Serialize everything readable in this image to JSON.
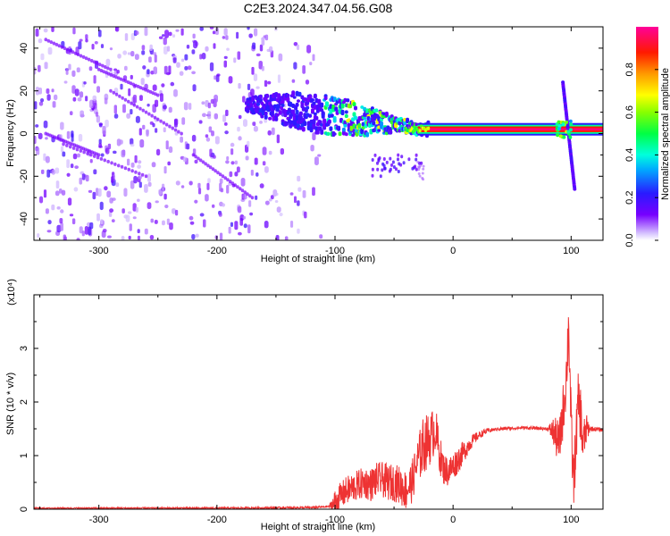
{
  "title": "C2E3.2024.347.04.56.G08",
  "chart_data": [
    {
      "type": "heatmap",
      "xlabel": "Height of straight line (km)",
      "ylabel": "Frequency (Hz)",
      "xlim": [
        -355,
        127
      ],
      "ylim": [
        -50,
        50
      ],
      "xticks": [
        -300,
        -200,
        -100,
        0,
        100
      ],
      "yticks": [
        -40,
        -20,
        0,
        20,
        40
      ],
      "colorbar": {
        "label": "Normalized spectral amplitude",
        "range": [
          0.0,
          1.0
        ],
        "ticks": [
          0.0,
          0.2,
          0.4,
          0.6,
          0.8
        ],
        "tick_labels": [
          "0.0",
          "0.2",
          "0.4",
          "0.6",
          "0.8"
        ]
      },
      "features": {
        "noise_region_x": [
          -355,
          -120
        ],
        "carrier_frequency": 2,
        "carrier_x": [
          -30,
          127
        ],
        "noisy_band": {
          "x": [
            -175,
            -20
          ],
          "freq_start": 14,
          "freq_end": 2
        },
        "spike_x": 97,
        "spike_freq_range": [
          -26,
          24
        ]
      },
      "grid": false
    },
    {
      "type": "line",
      "xlabel": "Height of straight line (km)",
      "ylabel": "SNR (10 * v/v)",
      "scale_label": "(x10⁴)",
      "xlim": [
        -355,
        127
      ],
      "ylim": [
        0,
        4
      ],
      "xticks": [
        -300,
        -200,
        -100,
        0,
        100
      ],
      "yticks": [
        0,
        1,
        2,
        3
      ],
      "series": [
        {
          "color": "#ee3333",
          "points": [
            [
              -355,
              0.02
            ],
            [
              -200,
              0.02
            ],
            [
              -120,
              0.03
            ],
            [
              -105,
              0.05
            ],
            [
              -100,
              0.12
            ],
            [
              -95,
              0.25
            ],
            [
              -90,
              0.35
            ],
            [
              -85,
              0.4
            ],
            [
              -80,
              0.45
            ],
            [
              -75,
              0.5
            ],
            [
              -70,
              0.45
            ],
            [
              -65,
              0.55
            ],
            [
              -60,
              0.55
            ],
            [
              -55,
              0.5
            ],
            [
              -50,
              0.5
            ],
            [
              -45,
              0.45
            ],
            [
              -40,
              0.35
            ],
            [
              -35,
              0.5
            ],
            [
              -30,
              0.9
            ],
            [
              -25,
              1.2
            ],
            [
              -20,
              1.3
            ],
            [
              -15,
              1.5
            ],
            [
              -12,
              1.1
            ],
            [
              -8,
              0.75
            ],
            [
              -4,
              0.7
            ],
            [
              0,
              0.8
            ],
            [
              5,
              0.95
            ],
            [
              10,
              1.1
            ],
            [
              15,
              1.25
            ],
            [
              20,
              1.35
            ],
            [
              25,
              1.42
            ],
            [
              30,
              1.47
            ],
            [
              40,
              1.5
            ],
            [
              60,
              1.52
            ],
            [
              80,
              1.5
            ],
            [
              85,
              1.45
            ],
            [
              88,
              1.3
            ],
            [
              90,
              1.2
            ],
            [
              92,
              1.6
            ],
            [
              94,
              2.0
            ],
            [
              96,
              2.5
            ],
            [
              98,
              3.5
            ],
            [
              100,
              1.5
            ],
            [
              102,
              0.5
            ],
            [
              104,
              1.2
            ],
            [
              106,
              2.0
            ],
            [
              108,
              1.8
            ],
            [
              110,
              1.2
            ],
            [
              113,
              1.5
            ],
            [
              118,
              1.5
            ],
            [
              127,
              1.48
            ]
          ],
          "noise_amplitude": [
            [
              -355,
              0.01
            ],
            [
              -105,
              0.02
            ],
            [
              -100,
              0.25
            ],
            [
              -50,
              0.35
            ],
            [
              -32,
              0.4
            ],
            [
              -25,
              0.55
            ],
            [
              -15,
              0.45
            ],
            [
              -8,
              0.3
            ],
            [
              5,
              0.25
            ],
            [
              20,
              0.08
            ],
            [
              35,
              0.03
            ],
            [
              80,
              0.03
            ],
            [
              88,
              0.4
            ],
            [
              98,
              0.6
            ],
            [
              110,
              0.5
            ],
            [
              116,
              0.05
            ],
            [
              127,
              0.03
            ]
          ]
        }
      ],
      "grid": false
    }
  ]
}
